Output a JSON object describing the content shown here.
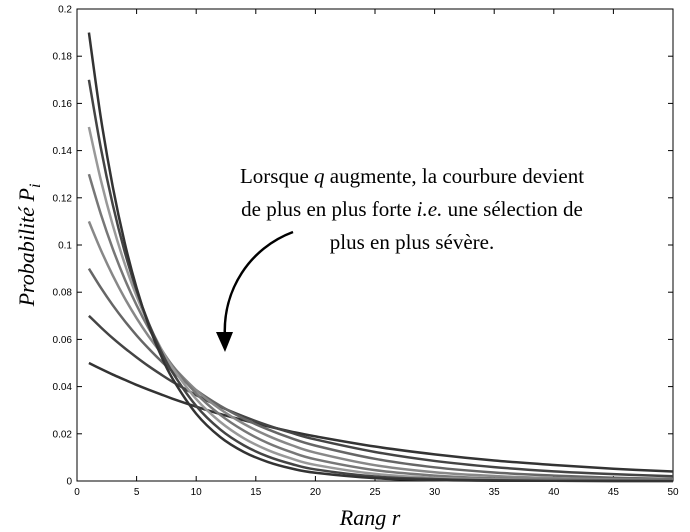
{
  "chart_data": {
    "type": "line",
    "ylabel": [
      "Probabilité ",
      "P",
      "i"
    ],
    "xlabel": "Rang r",
    "annotation": [
      [
        "Lorsque ",
        "q",
        " augmente, la courbure devient"
      ],
      [
        "de plus en plus forte ",
        "i.e.",
        " une sélection de"
      ],
      [
        "plus en plus sévère."
      ]
    ],
    "xlim": [
      0,
      50
    ],
    "ylim": [
      0,
      0.2
    ],
    "xticks": [
      0,
      5,
      10,
      15,
      20,
      25,
      30,
      35,
      40,
      45,
      50
    ],
    "yticks": [
      0,
      0.02,
      0.04,
      0.06,
      0.08,
      0.1,
      0.12,
      0.14,
      0.16,
      0.18,
      0.2
    ],
    "x": [
      1,
      2,
      3,
      4,
      5,
      6,
      7,
      8,
      10,
      12,
      14,
      16,
      18,
      20,
      25,
      30,
      35,
      40,
      45,
      50
    ],
    "series": [
      {
        "color": "#333333",
        "values": [
          0.05,
          0.0475,
          0.0451,
          0.0429,
          0.0407,
          0.0387,
          0.0368,
          0.0349,
          0.0315,
          0.0284,
          0.0257,
          0.0232,
          0.0209,
          0.0189,
          0.0146,
          0.0113,
          0.0087,
          0.0068,
          0.0052,
          0.004
        ]
      },
      {
        "color": "#444444",
        "values": [
          0.07,
          0.0651,
          0.0605,
          0.0563,
          0.0524,
          0.0487,
          0.0453,
          0.0421,
          0.0364,
          0.0315,
          0.0273,
          0.0236,
          0.0204,
          0.0176,
          0.0123,
          0.0085,
          0.0059,
          0.0041,
          0.0029,
          0.002
        ]
      },
      {
        "color": "#666666",
        "values": [
          0.09,
          0.0819,
          0.0745,
          0.0678,
          0.0617,
          0.0562,
          0.0511,
          0.0465,
          0.0385,
          0.0319,
          0.0264,
          0.0219,
          0.0181,
          0.015,
          0.0094,
          0.0058,
          0.0036,
          0.0023,
          0.0014,
          0.0009
        ]
      },
      {
        "color": "#888888",
        "values": [
          0.11,
          0.0979,
          0.0871,
          0.0775,
          0.069,
          0.0614,
          0.0547,
          0.0487,
          0.0385,
          0.0305,
          0.0242,
          0.0192,
          0.0152,
          0.012,
          0.0067,
          0.0037,
          0.0021,
          0.0012,
          0.0007,
          0.0004
        ]
      },
      {
        "color": "#777777",
        "values": [
          0.13,
          0.1131,
          0.0984,
          0.0856,
          0.0745,
          0.0648,
          0.0564,
          0.049,
          0.0371,
          0.0281,
          0.0213,
          0.0161,
          0.0122,
          0.0092,
          0.0046,
          0.0023,
          0.0011,
          0.0006,
          0.0003,
          0.0001
        ]
      },
      {
        "color": "#999999",
        "values": [
          0.15,
          0.1275,
          0.1084,
          0.0921,
          0.0783,
          0.0666,
          0.0566,
          0.0481,
          0.0347,
          0.0251,
          0.0181,
          0.0131,
          0.0095,
          0.0068,
          0.003,
          0.0013,
          0.0006,
          0.0003,
          0.0001,
          0.0001
        ]
      },
      {
        "color": "#444444",
        "values": [
          0.17,
          0.1411,
          0.1171,
          0.0972,
          0.0807,
          0.067,
          0.0556,
          0.0461,
          0.0318,
          0.0219,
          0.0151,
          0.0104,
          0.0072,
          0.0049,
          0.0019,
          0.0008,
          0.0003,
          0.0001,
          0.0,
          0.0
        ]
      },
      {
        "color": "#333333",
        "values": [
          0.19,
          0.1539,
          0.1247,
          0.101,
          0.0818,
          0.0662,
          0.0537,
          0.0435,
          0.0285,
          0.0187,
          0.0123,
          0.0081,
          0.0053,
          0.0035,
          0.0012,
          0.0004,
          0.0001,
          0.0001,
          0.0,
          0.0
        ]
      }
    ]
  }
}
